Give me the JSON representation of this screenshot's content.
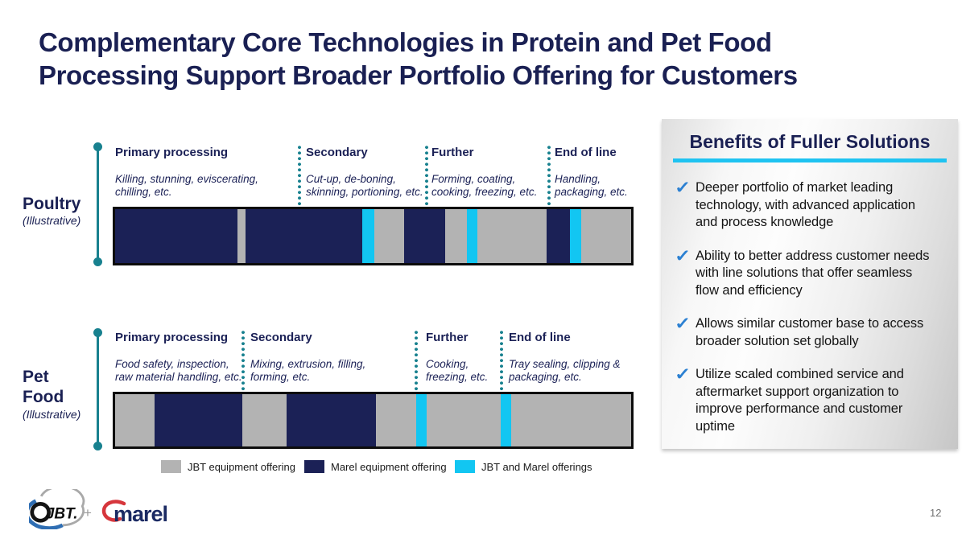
{
  "slide": {
    "title": "Complementary Core Technologies in Protein and Pet Food\nProcessing Support Broader Portfolio Offering for Customers",
    "page_number": "12"
  },
  "colors": {
    "navy": "#1b2156",
    "gray": "#b3b3b3",
    "cyan": "#12c6f2",
    "teal": "#18818f",
    "title_navy": "#1a2053",
    "check_blue": "#2b80d2",
    "underline_cyan": "#1fc3f1",
    "bar_border": "#0c0c0c"
  },
  "rows": [
    {
      "id": "poultry",
      "label": "Poultry",
      "sublabel": "(Illustrative)",
      "columns": [
        {
          "title": "Primary processing",
          "desc": "Killing, stunning, eviscerating,\nchilling, etc."
        },
        {
          "title": "Secondary",
          "desc": "Cut-up, de-boning,\nskinning, portioning, etc."
        },
        {
          "title": "Further",
          "desc": "Forming, coating,\ncooking, freezing, etc."
        },
        {
          "title": "End of line",
          "desc": "Handling,\npackaging, etc."
        }
      ],
      "segments": [
        {
          "offering": "marel",
          "pct": 23.7
        },
        {
          "offering": "jbt",
          "pct": 1.6
        },
        {
          "offering": "marel",
          "pct": 22.6
        },
        {
          "offering": "both",
          "pct": 2.3
        },
        {
          "offering": "jbt",
          "pct": 5.8
        },
        {
          "offering": "marel",
          "pct": 8.0
        },
        {
          "offering": "jbt",
          "pct": 4.2
        },
        {
          "offering": "both",
          "pct": 2.0
        },
        {
          "offering": "jbt",
          "pct": 13.4
        },
        {
          "offering": "marel",
          "pct": 4.5
        },
        {
          "offering": "both",
          "pct": 2.2
        },
        {
          "offering": "jbt",
          "pct": 9.7
        }
      ]
    },
    {
      "id": "petfood",
      "label": "Pet\nFood",
      "sublabel": "(Illustrative)",
      "columns": [
        {
          "title": "Primary processing",
          "desc": "Food safety, inspection,\nraw material handling, etc."
        },
        {
          "title": "Secondary",
          "desc": "Mixing, extrusion, filling,\nforming, etc."
        },
        {
          "title": "Further",
          "desc": "Cooking,\nfreezing, etc."
        },
        {
          "title": "End of line",
          "desc": "Tray sealing, clipping &\npackaging, etc."
        }
      ],
      "segments": [
        {
          "offering": "jbt",
          "pct": 7.7
        },
        {
          "offering": "marel",
          "pct": 17.0
        },
        {
          "offering": "jbt",
          "pct": 8.6
        },
        {
          "offering": "marel",
          "pct": 17.3
        },
        {
          "offering": "jbt",
          "pct": 7.7
        },
        {
          "offering": "both",
          "pct": 2.0
        },
        {
          "offering": "jbt",
          "pct": 14.5
        },
        {
          "offering": "both",
          "pct": 2.0
        },
        {
          "offering": "jbt",
          "pct": 23.2
        }
      ]
    }
  ],
  "legend": [
    {
      "offering": "jbt",
      "label": "JBT equipment offering"
    },
    {
      "offering": "marel",
      "label": "Marel equipment offering"
    },
    {
      "offering": "both",
      "label": "JBT and Marel offerings"
    }
  ],
  "benefits": {
    "title": "Benefits of Fuller Solutions",
    "items": [
      "Deeper portfolio of market leading\ntechnology, with advanced application\nand process knowledge",
      "Ability to better address customer needs\nwith line solutions that offer seamless\nflow and efficiency",
      "Allows similar customer base to access\nbroader solution set globally",
      "Utilize scaled combined service and\naftermarket support organization to\nimprove performance and  customer\nuptime"
    ],
    "check_icon": "✓"
  },
  "footer": {
    "jbt_logo": "JBT.",
    "plus": "+",
    "marel_logo": "marel"
  }
}
